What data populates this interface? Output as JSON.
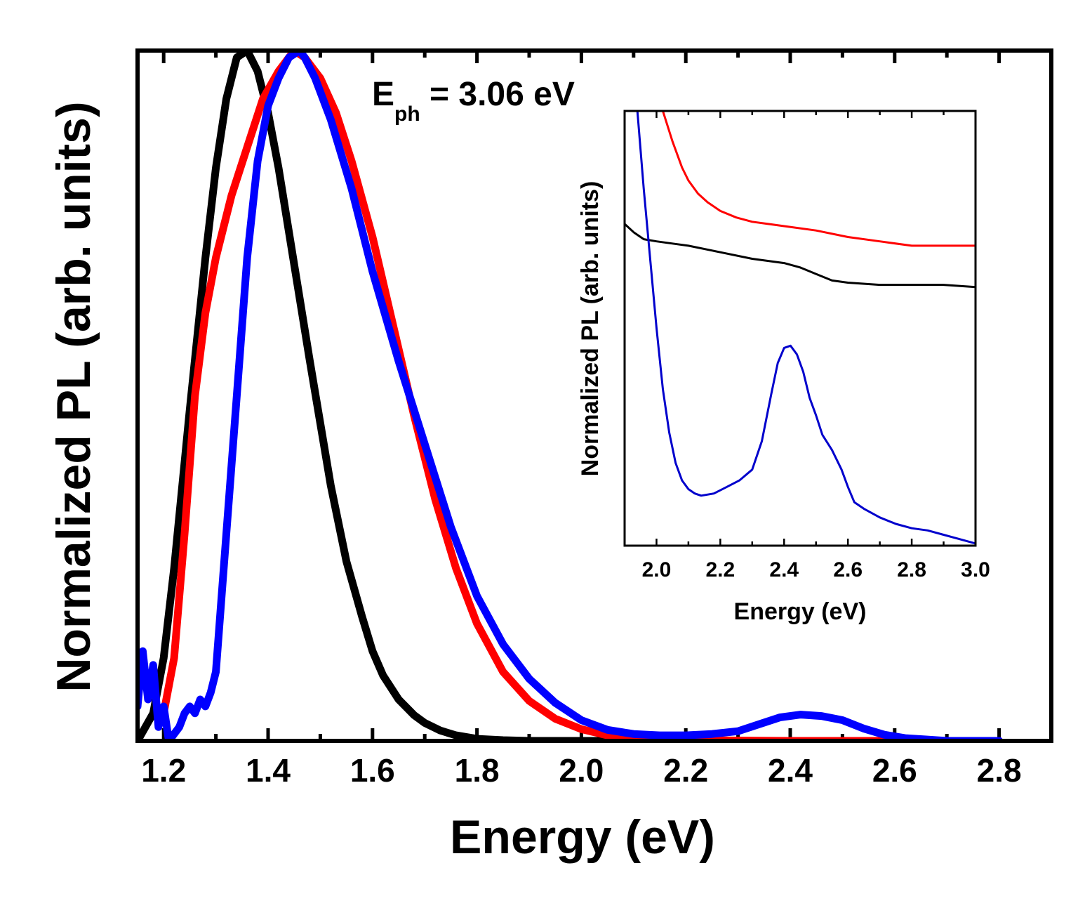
{
  "chart_data": [
    {
      "id": "main",
      "type": "line",
      "title": "",
      "xlabel": "Energy (eV)",
      "ylabel": "Normalized PL (arb. units)",
      "xlim": [
        1.15,
        2.9
      ],
      "ylim": [
        0,
        1
      ],
      "x_ticks": [
        "1.2",
        "1.4",
        "1.6",
        "1.8",
        "2.0",
        "2.2",
        "2.4",
        "2.6",
        "2.8"
      ],
      "grid": false,
      "annotation": {
        "main": "E",
        "sub": "ph",
        "rest": " = 3.06 eV"
      },
      "series": [
        {
          "name": "black",
          "color": "#000000",
          "x": [
            1.15,
            1.18,
            1.2,
            1.22,
            1.25,
            1.28,
            1.3,
            1.32,
            1.34,
            1.36,
            1.38,
            1.4,
            1.42,
            1.45,
            1.48,
            1.5,
            1.52,
            1.55,
            1.58,
            1.6,
            1.62,
            1.65,
            1.68,
            1.7,
            1.73,
            1.76,
            1.8,
            1.85,
            1.9,
            2.0,
            2.2,
            2.4,
            2.6,
            2.8
          ],
          "y": [
            0.0,
            0.04,
            0.12,
            0.25,
            0.48,
            0.7,
            0.83,
            0.93,
            0.99,
            1.0,
            0.97,
            0.91,
            0.83,
            0.69,
            0.55,
            0.46,
            0.37,
            0.26,
            0.18,
            0.13,
            0.095,
            0.06,
            0.037,
            0.026,
            0.015,
            0.008,
            0.003,
            0.001,
            0.0,
            0.0,
            0.0,
            0.0,
            0.0,
            0.0
          ]
        },
        {
          "name": "red",
          "color": "#ff0000",
          "x": [
            1.2,
            1.22,
            1.24,
            1.26,
            1.28,
            1.3,
            1.33,
            1.36,
            1.39,
            1.42,
            1.45,
            1.47,
            1.5,
            1.53,
            1.56,
            1.6,
            1.64,
            1.68,
            1.72,
            1.76,
            1.8,
            1.85,
            1.9,
            1.95,
            2.0,
            2.05,
            2.1,
            2.2,
            2.4,
            2.6,
            2.8
          ],
          "y": [
            0.04,
            0.12,
            0.3,
            0.5,
            0.62,
            0.7,
            0.79,
            0.86,
            0.93,
            0.97,
            1.0,
            0.99,
            0.96,
            0.91,
            0.84,
            0.73,
            0.6,
            0.47,
            0.35,
            0.25,
            0.17,
            0.1,
            0.058,
            0.032,
            0.017,
            0.008,
            0.004,
            0.001,
            0.0,
            0.0,
            0.0
          ]
        },
        {
          "name": "blue",
          "color": "#0000ff",
          "x": [
            1.15,
            1.16,
            1.17,
            1.18,
            1.19,
            1.2,
            1.21,
            1.22,
            1.23,
            1.24,
            1.25,
            1.26,
            1.27,
            1.28,
            1.29,
            1.3,
            1.32,
            1.34,
            1.36,
            1.38,
            1.4,
            1.42,
            1.44,
            1.46,
            1.47,
            1.49,
            1.52,
            1.56,
            1.6,
            1.65,
            1.7,
            1.75,
            1.8,
            1.85,
            1.9,
            1.95,
            2.0,
            2.05,
            2.1,
            2.15,
            2.2,
            2.25,
            2.3,
            2.34,
            2.38,
            2.42,
            2.46,
            2.5,
            2.54,
            2.58,
            2.62,
            2.66,
            2.7,
            2.8
          ],
          "y": [
            0.05,
            0.13,
            0.06,
            0.11,
            0.02,
            0.05,
            0.0,
            0.01,
            0.02,
            0.04,
            0.05,
            0.04,
            0.06,
            0.05,
            0.07,
            0.1,
            0.3,
            0.5,
            0.7,
            0.84,
            0.92,
            0.96,
            0.99,
            1.0,
            0.99,
            0.96,
            0.9,
            0.8,
            0.68,
            0.55,
            0.43,
            0.31,
            0.21,
            0.14,
            0.09,
            0.055,
            0.03,
            0.016,
            0.01,
            0.008,
            0.008,
            0.01,
            0.014,
            0.024,
            0.034,
            0.038,
            0.036,
            0.03,
            0.018,
            0.009,
            0.004,
            0.002,
            0.0,
            0.0
          ]
        }
      ]
    },
    {
      "id": "inset",
      "type": "line",
      "title": "",
      "xlabel": "Energy (eV)",
      "ylabel": "Normalized PL (arb. units)",
      "xlim": [
        1.9,
        3.0
      ],
      "ylim": [
        0,
        1
      ],
      "x_ticks": [
        "2.0",
        "2.2",
        "2.4",
        "2.6",
        "2.8",
        "3.0"
      ],
      "grid": false,
      "series": [
        {
          "name": "red",
          "color": "#ff0000",
          "x": [
            2.02,
            2.05,
            2.08,
            2.1,
            2.13,
            2.16,
            2.2,
            2.25,
            2.3,
            2.35,
            2.4,
            2.5,
            2.6,
            2.7,
            2.8,
            2.9,
            3.0
          ],
          "y": [
            1.0,
            0.93,
            0.87,
            0.84,
            0.81,
            0.79,
            0.77,
            0.755,
            0.745,
            0.74,
            0.735,
            0.725,
            0.71,
            0.7,
            0.69,
            0.69,
            0.69
          ]
        },
        {
          "name": "black",
          "color": "#000000",
          "x": [
            1.9,
            1.93,
            1.96,
            2.0,
            2.05,
            2.1,
            2.2,
            2.3,
            2.4,
            2.45,
            2.5,
            2.55,
            2.6,
            2.7,
            2.8,
            2.9,
            3.0
          ],
          "y": [
            0.74,
            0.72,
            0.705,
            0.7,
            0.695,
            0.69,
            0.675,
            0.66,
            0.65,
            0.64,
            0.625,
            0.61,
            0.605,
            0.6,
            0.6,
            0.6,
            0.595
          ]
        },
        {
          "name": "blue",
          "color": "#0000cc",
          "x": [
            1.94,
            1.96,
            1.98,
            2.0,
            2.02,
            2.04,
            2.06,
            2.08,
            2.1,
            2.12,
            2.14,
            2.18,
            2.22,
            2.26,
            2.3,
            2.33,
            2.36,
            2.38,
            2.4,
            2.42,
            2.44,
            2.46,
            2.48,
            2.5,
            2.52,
            2.55,
            2.58,
            2.6,
            2.62,
            2.65,
            2.7,
            2.75,
            2.8,
            2.85,
            2.9,
            2.95,
            3.0
          ],
          "y": [
            1.0,
            0.82,
            0.66,
            0.5,
            0.36,
            0.26,
            0.19,
            0.15,
            0.13,
            0.12,
            0.115,
            0.12,
            0.135,
            0.15,
            0.175,
            0.24,
            0.35,
            0.42,
            0.455,
            0.46,
            0.44,
            0.4,
            0.34,
            0.3,
            0.255,
            0.22,
            0.175,
            0.135,
            0.1,
            0.085,
            0.065,
            0.05,
            0.04,
            0.035,
            0.025,
            0.015,
            0.005
          ]
        }
      ]
    }
  ]
}
